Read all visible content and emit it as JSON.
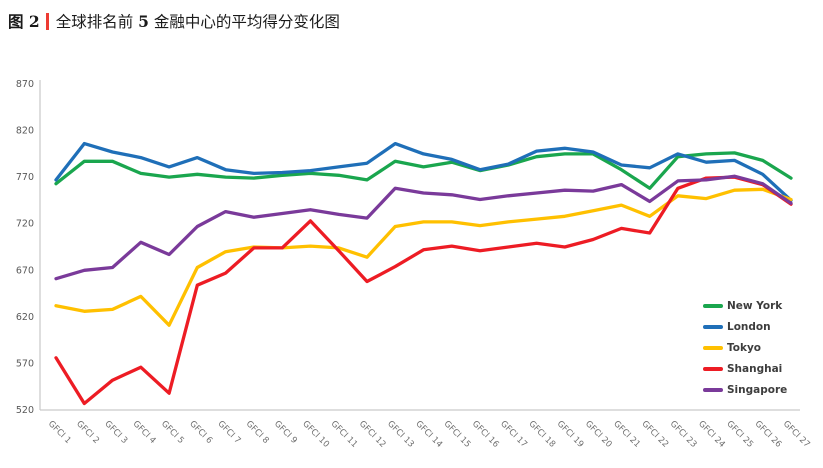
{
  "title": {
    "figure_label": "图 2",
    "main_prefix": "全球排名前 ",
    "main_number": "5",
    "main_suffix": " 金融中心的平均得分变化图"
  },
  "colors": {
    "title_bar_red": "#ED3B33",
    "axis_line": "#c9c9c9",
    "tick_label": "#595959"
  },
  "chart_data": {
    "type": "line",
    "title": "图 2 | 全球排名前 5 金融中心的平均得分变化图",
    "xlabel": "",
    "ylabel": "",
    "ylim": [
      520,
      870
    ],
    "y_ticks": [
      520,
      570,
      620,
      670,
      720,
      770,
      820,
      870
    ],
    "grid": false,
    "legend_position": "right-inside",
    "categories": [
      "GFCI 1",
      "GFCI 2",
      "GFCI 3",
      "GFCI 4",
      "GFCI 5",
      "GFCI 6",
      "GFCI 7",
      "GFCI 8",
      "GFCI 9",
      "GFCI 10",
      "GFCI 11",
      "GFCI 12",
      "GFCI 13",
      "GFCI 14",
      "GFCI 15",
      "GFCI 16",
      "GFCI 17",
      "GFCI 18",
      "GFCI 19",
      "GFCI 20",
      "GFCI 21",
      "GFCI 22",
      "GFCI 23",
      "GFCI 24",
      "GFCI 25",
      "GFCI 26",
      "GFCI 27"
    ],
    "series": [
      {
        "name": "New York",
        "color": "#1AA64E",
        "values": [
          763,
          787,
          787,
          774,
          770,
          773,
          770,
          769,
          772,
          774,
          772,
          767,
          787,
          781,
          786,
          777,
          783,
          792,
          795,
          795,
          778,
          758,
          792,
          795,
          796,
          788,
          769
        ]
      },
      {
        "name": "London",
        "color": "#1F6FB8",
        "values": [
          767,
          806,
          797,
          791,
          781,
          791,
          778,
          774,
          775,
          777,
          781,
          785,
          806,
          795,
          789,
          778,
          784,
          798,
          801,
          797,
          783,
          780,
          795,
          786,
          788,
          773,
          745
        ]
      },
      {
        "name": "Tokyo",
        "color": "#FFC000",
        "values": [
          632,
          626,
          628,
          642,
          611,
          673,
          690,
          695,
          694,
          696,
          694,
          684,
          717,
          722,
          722,
          718,
          722,
          725,
          728,
          734,
          740,
          728,
          750,
          747,
          756,
          757,
          746
        ]
      },
      {
        "name": "Shanghai",
        "color": "#ED1C24",
        "values": [
          576,
          527,
          552,
          566,
          538,
          654,
          667,
          694,
          694,
          723,
          691,
          658,
          674,
          692,
          696,
          691,
          695,
          699,
          695,
          703,
          715,
          710,
          758,
          769,
          770,
          762,
          741
        ]
      },
      {
        "name": "Singapore",
        "color": "#7A3A9A",
        "values": [
          661,
          670,
          673,
          700,
          687,
          717,
          733,
          727,
          731,
          735,
          730,
          726,
          758,
          753,
          751,
          746,
          750,
          753,
          756,
          755,
          762,
          744,
          766,
          767,
          771,
          763,
          742
        ]
      }
    ]
  }
}
